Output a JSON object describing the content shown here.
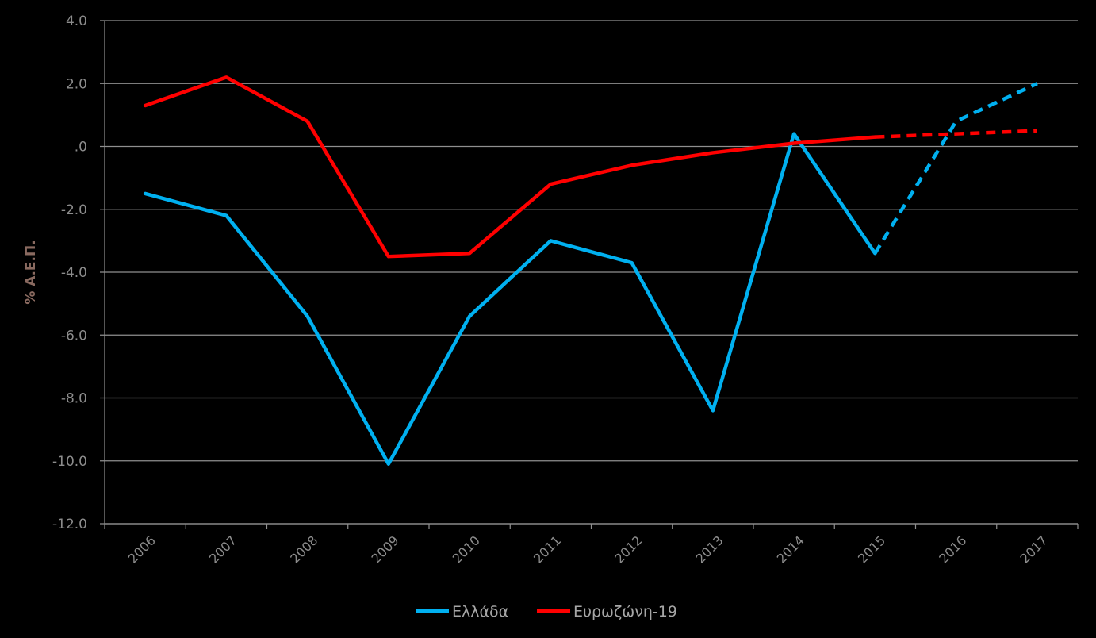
{
  "chart_data": {
    "type": "line",
    "title": "",
    "xlabel": "",
    "ylabel": "% Α.Ε.Π.",
    "ylim": [
      -12,
      4
    ],
    "y_ticks": [
      "4.0",
      "2.0",
      ".0",
      "-2.0",
      "-4.0",
      "-6.0",
      "-8.0",
      "-10.0",
      "-12.0"
    ],
    "y_tick_values": [
      4,
      2,
      0,
      -2,
      -4,
      -6,
      -8,
      -10,
      -12
    ],
    "categories": [
      "2006",
      "2007",
      "2008",
      "2009",
      "2010",
      "2011",
      "2012",
      "2013",
      "2014",
      "2015",
      "2016",
      "2017"
    ],
    "grid": true,
    "legend_position": "bottom",
    "series": [
      {
        "name": "Ελλάδα",
        "color": "#00b0f0",
        "values": [
          -1.5,
          -2.2,
          -5.4,
          -10.1,
          -5.4,
          -3.0,
          -3.7,
          -8.4,
          0.4,
          -3.4,
          0.8,
          2.0
        ],
        "dashed_from_index": 9
      },
      {
        "name": "Ευρωζώνη-19",
        "color": "#ff0000",
        "values": [
          1.3,
          2.2,
          0.8,
          -3.5,
          -3.4,
          -1.2,
          -0.6,
          -0.2,
          0.1,
          0.3,
          0.4,
          0.5
        ],
        "dashed_from_index": 9
      }
    ]
  }
}
